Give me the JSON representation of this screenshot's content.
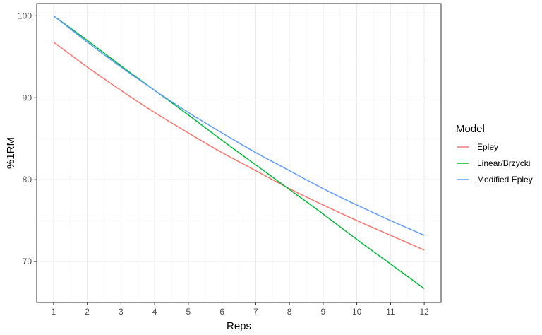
{
  "chart_data": {
    "type": "line",
    "xlabel": "Reps",
    "ylabel": "%1RM",
    "xlim": [
      0.5,
      12.5
    ],
    "ylim": [
      65,
      101.5
    ],
    "x_ticks": [
      1,
      2,
      3,
      4,
      5,
      6,
      7,
      8,
      9,
      10,
      11,
      12
    ],
    "y_ticks": [
      70,
      80,
      90,
      100
    ],
    "grid": true,
    "legend": {
      "title": "Model",
      "position": "right"
    },
    "x": [
      1,
      2,
      3,
      4,
      5,
      6,
      7,
      8,
      9,
      10,
      11,
      12
    ],
    "series": [
      {
        "name": "Epley",
        "color": "#F8766D",
        "values": [
          96.8,
          93.75,
          90.9,
          88.2,
          85.7,
          83.3,
          81.1,
          78.9,
          76.9,
          75.0,
          73.2,
          71.4
        ]
      },
      {
        "name": "Linear/Brzycki",
        "color": "#00BA38",
        "values": [
          100,
          97.0,
          93.9,
          90.9,
          87.9,
          84.8,
          81.8,
          78.8,
          75.8,
          72.7,
          69.7,
          66.7
        ]
      },
      {
        "name": "Modified Epley",
        "color": "#619CFF",
        "values": [
          100,
          96.8,
          93.75,
          90.9,
          88.2,
          85.7,
          83.3,
          81.1,
          78.9,
          76.9,
          75.0,
          73.2
        ]
      }
    ]
  }
}
